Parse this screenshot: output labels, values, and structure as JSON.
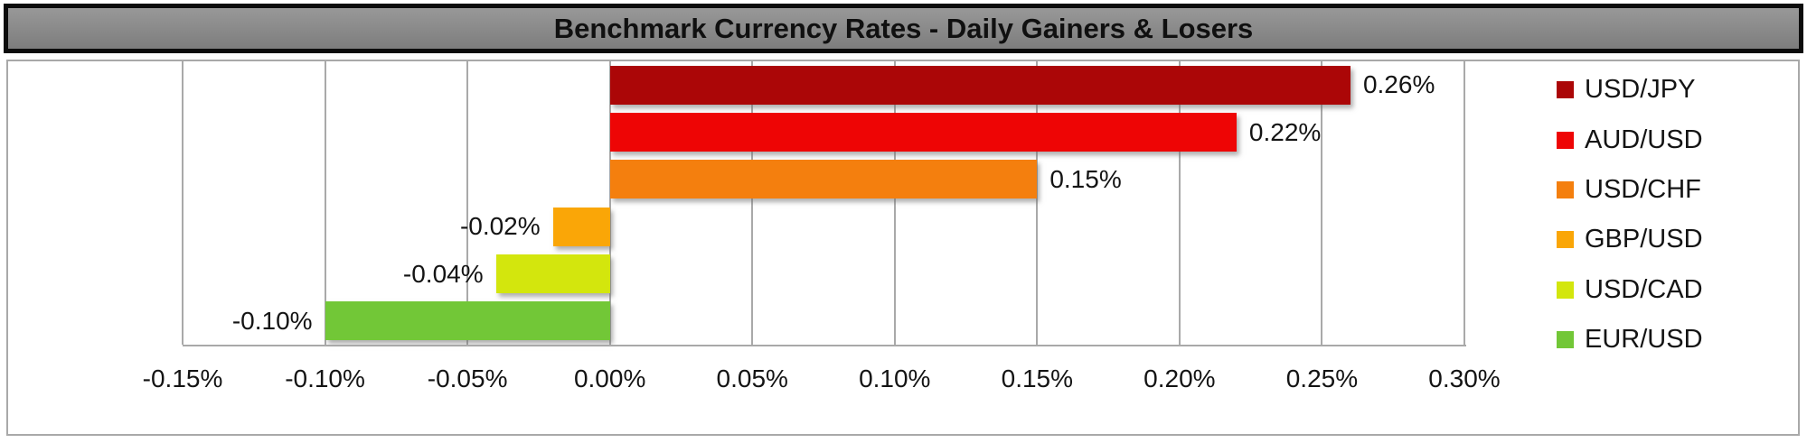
{
  "title": "Benchmark Currency Rates - Daily Gainers & Losers",
  "colors": {
    "title_bg": "#8a8a8a",
    "title_border": "#0c0c0c",
    "chart_border": "#a9a9a9",
    "gridline": "#a9a9a9",
    "label_text": "#141414"
  },
  "chart_data": {
    "type": "bar",
    "orientation": "horizontal",
    "title": "Benchmark Currency Rates - Daily Gainers & Losers",
    "categories": [
      "USD/JPY",
      "AUD/USD",
      "USD/CHF",
      "GBP/USD",
      "USD/CAD",
      "EUR/USD"
    ],
    "values": [
      0.26,
      0.22,
      0.15,
      -0.02,
      -0.04,
      -0.1
    ],
    "data_labels": [
      "0.26%",
      "0.22%",
      "0.15%",
      "-0.02%",
      "-0.04%",
      "-0.10%"
    ],
    "bar_colors": [
      "#ab0607",
      "#ee0505",
      "#f47f0e",
      "#faa607",
      "#d3e60d",
      "#72c737"
    ],
    "x_tick_labels": [
      "-0.15%",
      "-0.10%",
      "-0.05%",
      "0.00%",
      "0.05%",
      "0.10%",
      "0.15%",
      "0.20%",
      "0.25%",
      "0.30%"
    ],
    "x_tick_values": [
      -0.15,
      -0.1,
      -0.05,
      0.0,
      0.05,
      0.1,
      0.15,
      0.2,
      0.25,
      0.3
    ],
    "xlim": [
      -0.15,
      0.3
    ],
    "xlabel": "",
    "ylabel": "",
    "grid": true,
    "legend_position": "right"
  }
}
